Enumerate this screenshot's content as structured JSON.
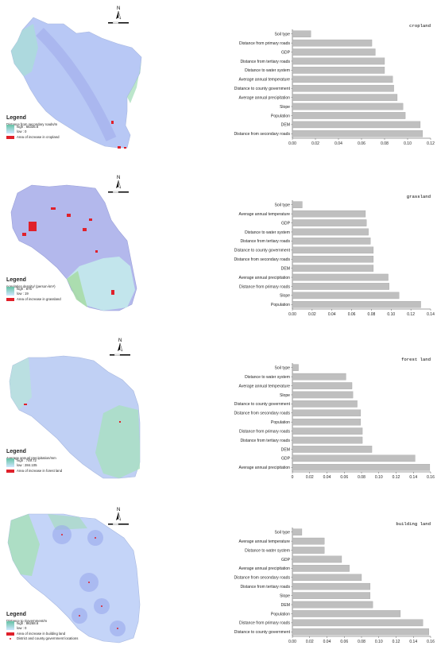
{
  "panels": [
    {
      "id": "cropland",
      "map": {
        "legend_title": "Legend",
        "variable": "Distance from secondary roads/m",
        "high_label": "high : 65335.6",
        "low_label": "low : 0",
        "increase_label": "Area of increase in cropland",
        "extra_label": "",
        "colors": {
          "base": "#b8c8f5",
          "accent": "#9bd8c8",
          "highlight": "#8fd6a8"
        }
      },
      "chart_data": {
        "type": "bar",
        "title": "cropland",
        "categories": [
          "Soil type",
          "Distance from primary roads",
          "GDP",
          "Distance from tertiary roads",
          "Distance to water system",
          "Average annual temperature",
          "Distance to county government",
          "Average annual precipitation",
          "Slope",
          "Population",
          "DEM",
          "Distance from secondary roads"
        ],
        "values": [
          0.016,
          0.069,
          0.072,
          0.08,
          0.08,
          0.087,
          0.088,
          0.091,
          0.096,
          0.098,
          0.111,
          0.113
        ],
        "xlim": [
          0,
          0.12
        ],
        "ticks": [
          "0.00",
          "0.02",
          "0.04",
          "0.06",
          "0.08",
          "0.10",
          "0.12"
        ],
        "bar_color": "#bfbfbf"
      }
    },
    {
      "id": "grassland",
      "map": {
        "legend_title": "Legend",
        "variable": "population density/ (person·km²)",
        "high_label": "high : 875",
        "low_label": "low : 19",
        "increase_label": "Area of increase in grassland",
        "extra_label": "",
        "colors": {
          "base": "#b3b8ec",
          "accent": "#bfe8e8",
          "highlight": "#a8dca8"
        }
      },
      "chart_data": {
        "type": "bar",
        "title": "grassland",
        "categories": [
          "Soil type",
          "Average annual temperature",
          "GDP",
          "Distance to water system",
          "Distance from tertiary roads",
          "Distance to county government",
          "Distance from secondary roads",
          "DEM",
          "Average annual precipitation",
          "Distance from primary roads",
          "Slope",
          "Population"
        ],
        "values": [
          0.01,
          0.074,
          0.075,
          0.077,
          0.079,
          0.082,
          0.082,
          0.082,
          0.097,
          0.098,
          0.108,
          0.13
        ],
        "xlim": [
          0,
          0.14
        ],
        "ticks": [
          "0.00",
          "0.02",
          "0.04",
          "0.06",
          "0.08",
          "0.10",
          "0.12",
          "0.14"
        ],
        "bar_color": "#bfbfbf"
      }
    },
    {
      "id": "forest",
      "map": {
        "legend_title": "Legend",
        "variable": "Average annual precipitation/mm",
        "high_label": "high : 749.72",
        "low_label": "low : 284.105",
        "increase_label": "Area of increase in forest land",
        "extra_label": "",
        "colors": {
          "base": "#c0d0f4",
          "accent": "#b8e6d8",
          "highlight": "#9ed8a4"
        }
      },
      "chart_data": {
        "type": "bar",
        "title": "forest land",
        "categories": [
          "Soil type",
          "Distance to water system",
          "Average annual temperature",
          "Slope",
          "Distance to county government",
          "Distance from secondary roads",
          "Population",
          "Distance from primary roads",
          "Distance from tertiary roads",
          "DEM",
          "GDP",
          "Average annual precipitation"
        ],
        "values": [
          0.007,
          0.062,
          0.069,
          0.07,
          0.075,
          0.079,
          0.079,
          0.081,
          0.081,
          0.092,
          0.142,
          0.159
        ],
        "xlim": [
          0,
          0.16
        ],
        "ticks": [
          "0",
          "0.02",
          "0.04",
          "0.06",
          "0.08",
          "0.10",
          "0.12",
          "0.14",
          "0.16"
        ],
        "bar_color": "#bfbfbf"
      }
    },
    {
      "id": "building",
      "map": {
        "legend_title": "Legend",
        "variable": "Distance to Government/m",
        "high_label": "high : 86268.6",
        "low_label": "low : 0",
        "increase_label": "Area of increase in building land",
        "extra_label": "District and county government locations",
        "colors": {
          "base": "#c4d4f8",
          "accent": "#b0e0d8",
          "highlight": "#8fd08c"
        }
      },
      "chart_data": {
        "type": "bar",
        "title": "building land",
        "categories": [
          "Soil type",
          "Average annual temperature",
          "Distance to water system",
          "GDP",
          "Average annual precipitation",
          "Distance from secondary roads",
          "Distance from tertiary roads",
          "Slope",
          "DEM",
          "Population",
          "Distance from primary roads",
          "Distance to county government"
        ],
        "values": [
          0.011,
          0.037,
          0.037,
          0.057,
          0.066,
          0.08,
          0.09,
          0.09,
          0.093,
          0.125,
          0.151,
          0.158
        ],
        "xlim": [
          0,
          0.16
        ],
        "ticks": [
          "0.00",
          "0.02",
          "0.04",
          "0.06",
          "0.08",
          "0.10",
          "0.12",
          "0.14",
          "0.16"
        ],
        "bar_color": "#bfbfbf"
      }
    }
  ],
  "north_label": "N",
  "scale_labels": [
    "0",
    "5",
    "10",
    "20"
  ]
}
